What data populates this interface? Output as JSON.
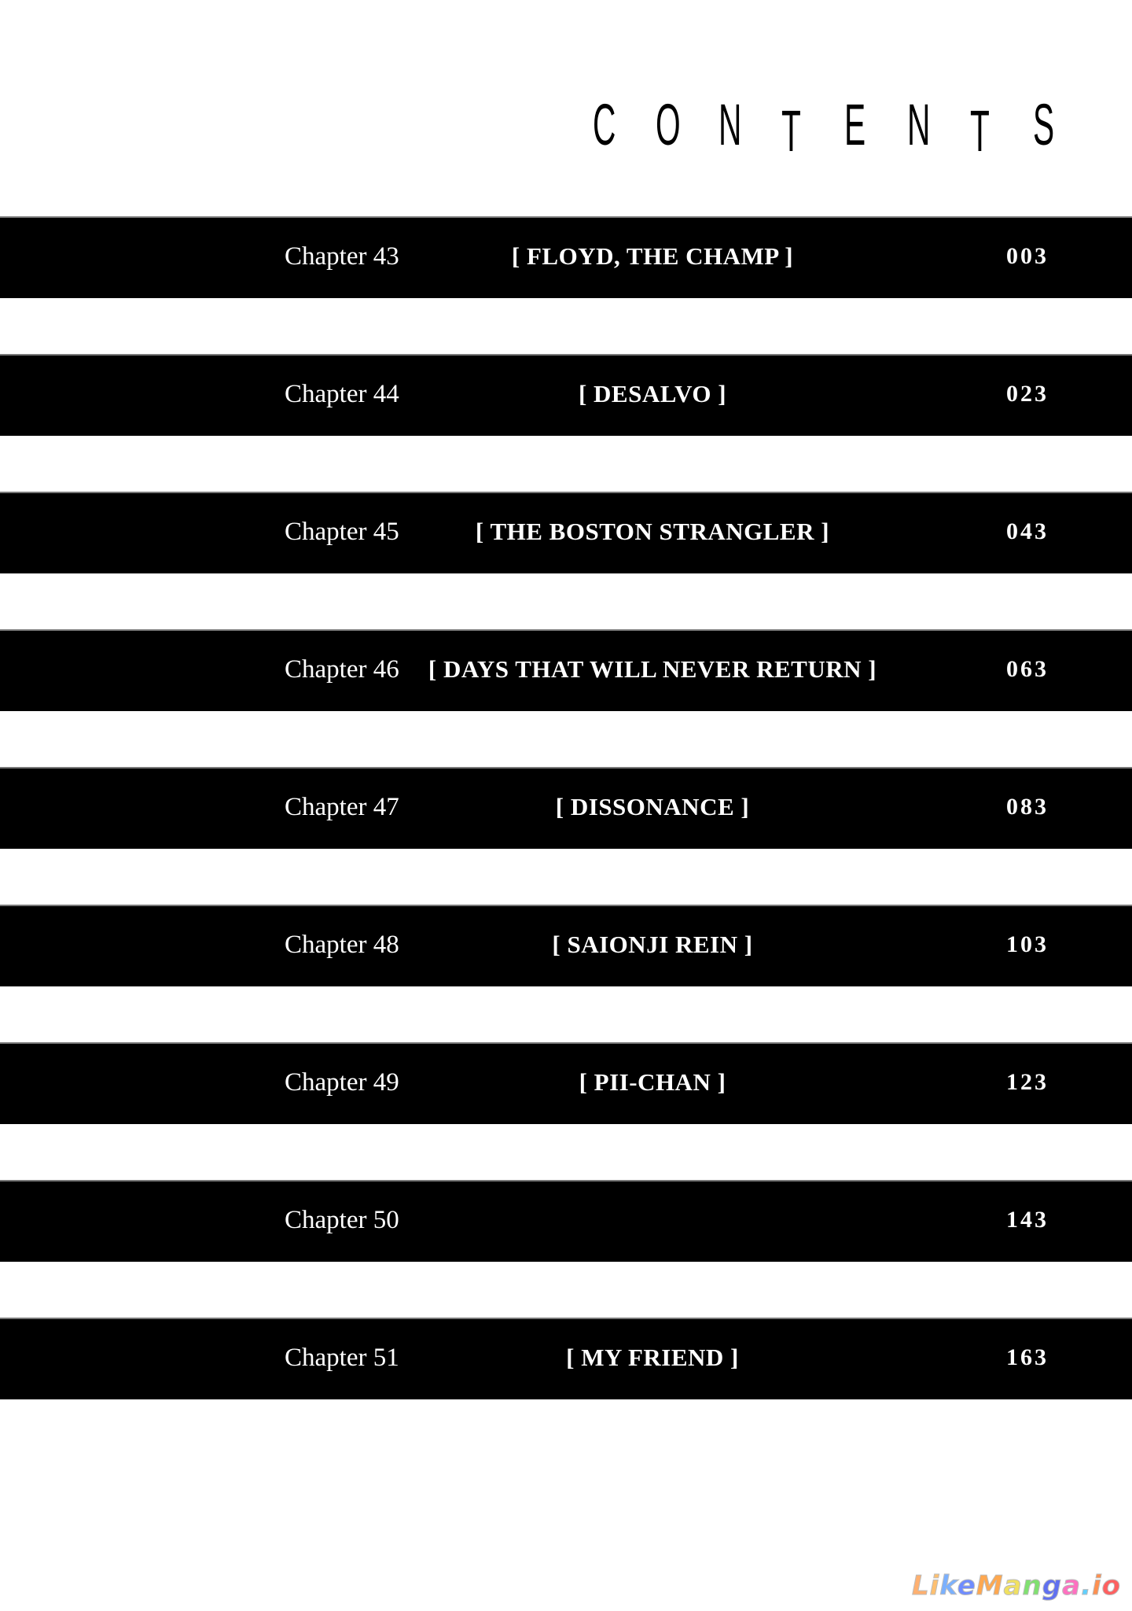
{
  "title": "CONTENTS",
  "chapters": [
    {
      "label": "Chapter 43",
      "name": "[ FLOYD, THE CHAMP ]",
      "page": "003"
    },
    {
      "label": "Chapter 44",
      "name": "[ DESALVO ]",
      "page": "023"
    },
    {
      "label": "Chapter 45",
      "name": "[ THE BOSTON STRANGLER ]",
      "page": "043"
    },
    {
      "label": "Chapter 46",
      "name": "[ DAYS THAT WILL NEVER RETURN ]",
      "page": "063"
    },
    {
      "label": "Chapter 47",
      "name": "[ DISSONANCE ]",
      "page": "083"
    },
    {
      "label": "Chapter 48",
      "name": "[ SAIONJI REIN ]",
      "page": "103"
    },
    {
      "label": "Chapter 49",
      "name": "[ PII-CHAN ]",
      "page": "123"
    },
    {
      "label": "Chapter 50",
      "name": "",
      "page": "143"
    },
    {
      "label": "Chapter 51",
      "name": "[ MY FRIEND ]",
      "page": "163"
    }
  ],
  "watermark": "LikeManga.io",
  "watermark_colors": [
    "#ffb070",
    "#ffc070",
    "#7ab0ff",
    "#6f8cff",
    "#ffa850",
    "#f0e060",
    "#80e070",
    "#6070f0",
    "#ff70c0",
    "#60d0ff",
    "#ff9050",
    "#ff6060"
  ]
}
